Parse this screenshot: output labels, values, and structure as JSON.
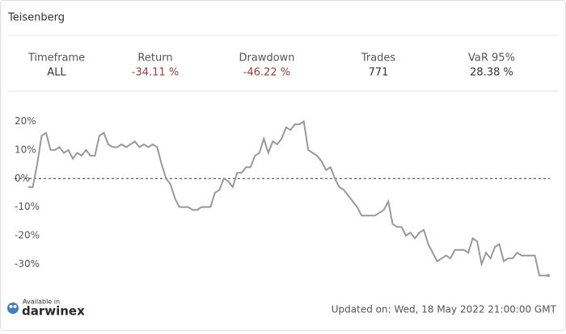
{
  "header": {
    "title": "Teisenberg"
  },
  "stats": [
    {
      "label": "Timeframe",
      "value": "ALL"
    },
    {
      "label": "Return",
      "value": "-34.11 %"
    },
    {
      "label": "Drawdown",
      "value": "-46.22 %"
    },
    {
      "label": "Trades",
      "value": "771"
    },
    {
      "label": "VaR 95%",
      "value": "28.38 %"
    }
  ],
  "chart_data": {
    "type": "line",
    "color": "#999999",
    "values": [
      -3,
      -3,
      5,
      15,
      16,
      10,
      10,
      11,
      9,
      10,
      7,
      9,
      8,
      10,
      8,
      8,
      15,
      16,
      12,
      11,
      11,
      12,
      11,
      12,
      13,
      11,
      12,
      11,
      12,
      11,
      5,
      0,
      -2,
      -7,
      -10,
      -10,
      -10,
      -11,
      -11,
      -10,
      -10,
      -10,
      -5,
      -4,
      0,
      -1,
      -3,
      2,
      2,
      4,
      4,
      8,
      9,
      14,
      9,
      13,
      12,
      14,
      18,
      17,
      19,
      19,
      20,
      10,
      9,
      8,
      6,
      3,
      4,
      0,
      -3,
      -4,
      -6,
      -8,
      -10,
      -13,
      -13,
      -13,
      -13,
      -12,
      -11,
      -8,
      -16,
      -17,
      -17,
      -20,
      -19,
      -21,
      -19,
      -18,
      -23,
      -26,
      -29,
      -28,
      -27,
      -28,
      -25,
      -25,
      -25,
      -26,
      -21,
      -22,
      -30,
      -26,
      -28,
      -24,
      -23,
      -29,
      -28,
      -28,
      -26,
      -27,
      -27,
      -27,
      -27,
      -34,
      -34,
      -34
    ],
    "ylim": [
      -35,
      23
    ],
    "yticks": [
      {
        "value": -30,
        "label": "-30%"
      },
      {
        "value": -20,
        "label": "-20%"
      },
      {
        "value": -10,
        "label": "-10%"
      },
      {
        "value": 0,
        "label": "0%"
      },
      {
        "value": 10,
        "label": "10%"
      },
      {
        "value": 20,
        "label": "20%"
      }
    ]
  },
  "footer": {
    "available": "Available in",
    "brand": "darwinex",
    "updated": "Updated on: Wed, 18 May 2022 21:00:00 GMT"
  }
}
